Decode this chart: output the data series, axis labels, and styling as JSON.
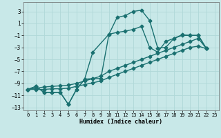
{
  "xlabel": "Humidex (Indice chaleur)",
  "background_color": "#c8e8e8",
  "grid_color": "#b0d8d8",
  "line_color": "#1a7070",
  "xlim": [
    -0.5,
    23.5
  ],
  "ylim": [
    -13.5,
    4.5
  ],
  "xticks": [
    0,
    1,
    2,
    3,
    4,
    5,
    6,
    7,
    8,
    9,
    10,
    11,
    12,
    13,
    14,
    15,
    16,
    17,
    18,
    19,
    20,
    21,
    22,
    23
  ],
  "yticks": [
    -13,
    -11,
    -9,
    -7,
    -5,
    -3,
    -1,
    1,
    3
  ],
  "series1_x": [
    0,
    1,
    2,
    3,
    4,
    5,
    6,
    7,
    8,
    10,
    11,
    12,
    13,
    14,
    15,
    16,
    17,
    18,
    19,
    20,
    21,
    22
  ],
  "series1_y": [
    -10,
    -9.5,
    -10.5,
    -10.5,
    -10.5,
    -12.5,
    -10,
    -8.3,
    -3.8,
    -0.8,
    2.0,
    2.3,
    3.0,
    3.2,
    1.5,
    -3.1,
    -3.0,
    -1.5,
    -0.9,
    -1.0,
    -1.0,
    -3.2
  ],
  "series2_x": [
    0,
    1,
    2,
    3,
    4,
    5,
    6,
    7,
    8,
    9,
    10,
    11,
    12,
    13,
    14,
    15,
    16,
    17,
    18,
    19,
    20,
    21,
    22
  ],
  "series2_y": [
    -10,
    -9.5,
    -10.5,
    -10.5,
    -10.5,
    -12.5,
    -10,
    -8.3,
    -8.2,
    -8.2,
    -0.8,
    -0.5,
    -0.3,
    0.0,
    0.5,
    -3.0,
    -3.8,
    -2.0,
    -1.5,
    -1.0,
    -1.0,
    -1.0,
    -3.2
  ],
  "series3_x": [
    0,
    1,
    2,
    3,
    4,
    5,
    6,
    7,
    8,
    9,
    10,
    11,
    12,
    13,
    14,
    15,
    16,
    17,
    18,
    19,
    20,
    21,
    22
  ],
  "series3_y": [
    -10.0,
    -9.8,
    -9.6,
    -9.5,
    -9.4,
    -9.3,
    -9.0,
    -8.6,
    -8.2,
    -7.8,
    -7.0,
    -6.5,
    -6.0,
    -5.5,
    -5.0,
    -4.5,
    -4.0,
    -3.5,
    -3.0,
    -2.5,
    -2.0,
    -1.5,
    -3.2
  ],
  "series4_x": [
    0,
    1,
    2,
    3,
    4,
    5,
    6,
    7,
    8,
    9,
    10,
    11,
    12,
    13,
    14,
    15,
    16,
    17,
    18,
    19,
    20,
    21,
    22
  ],
  "series4_y": [
    -10.0,
    -10.0,
    -10.0,
    -9.9,
    -9.9,
    -9.8,
    -9.5,
    -9.2,
    -8.9,
    -8.6,
    -8.0,
    -7.5,
    -7.0,
    -6.5,
    -6.0,
    -5.5,
    -5.0,
    -4.5,
    -4.0,
    -3.5,
    -3.0,
    -2.8,
    -3.2
  ],
  "marker": "D",
  "marker_size": 2.5,
  "line_width": 1.0
}
